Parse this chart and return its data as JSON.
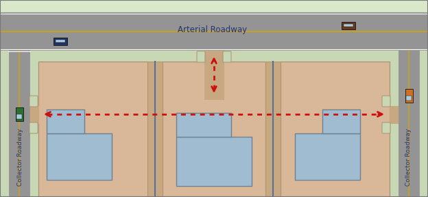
{
  "fig_width": 6.24,
  "fig_height": 2.88,
  "dpi": 100,
  "colors": {
    "bg_green": "#d8e8c8",
    "road_gray": "#949494",
    "road_gray_dark": "#888888",
    "sidewalk_green": "#c8d8b4",
    "parcel_light": "#d8b898",
    "parcel_dark": "#c8a880",
    "parcel_edge": "#a89070",
    "driveway": "#c0a07a",
    "building_fill": "#a0bcd0",
    "building_edge": "#708090",
    "yellow_line": "#c8a020",
    "white_line": "#ffffff",
    "red": "#cc1010",
    "car_blue": "#223366",
    "car_brown": "#6b3820",
    "car_orange": "#d07020",
    "car_green": "#2a7030"
  },
  "arterial_label": "Arterial Roadway",
  "collector_label": "Collector Roadway"
}
